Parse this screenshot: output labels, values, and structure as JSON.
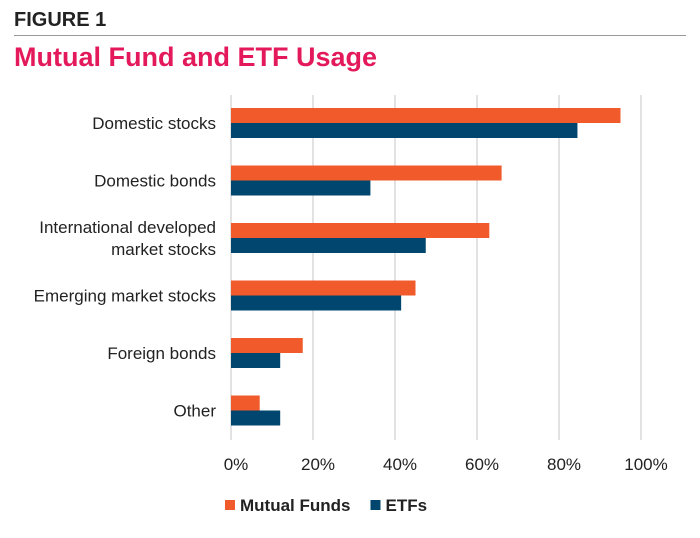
{
  "header": {
    "figure_label": "FIGURE 1",
    "title": "Mutual Fund and ETF Usage"
  },
  "chart_data": {
    "type": "bar",
    "orientation": "horizontal",
    "title": "Mutual Fund and ETF Usage",
    "categories": [
      [
        "Domestic stocks"
      ],
      [
        "Domestic bonds"
      ],
      [
        "International developed",
        "market stocks"
      ],
      [
        "Emerging market stocks"
      ],
      [
        "Foreign bonds"
      ],
      [
        "Other"
      ]
    ],
    "series": [
      {
        "name": "Mutual Funds",
        "color": "#f15a2b",
        "values": [
          95,
          66,
          63,
          45,
          17.5,
          7
        ]
      },
      {
        "name": "ETFs",
        "color": "#00466e",
        "values": [
          84.5,
          34,
          47.5,
          41.5,
          12,
          12
        ]
      }
    ],
    "xlim": [
      0,
      100
    ],
    "ticks": [
      "0%",
      "20%",
      "40%",
      "60%",
      "80%",
      "100%"
    ],
    "grid": true,
    "legend": "bottom"
  }
}
